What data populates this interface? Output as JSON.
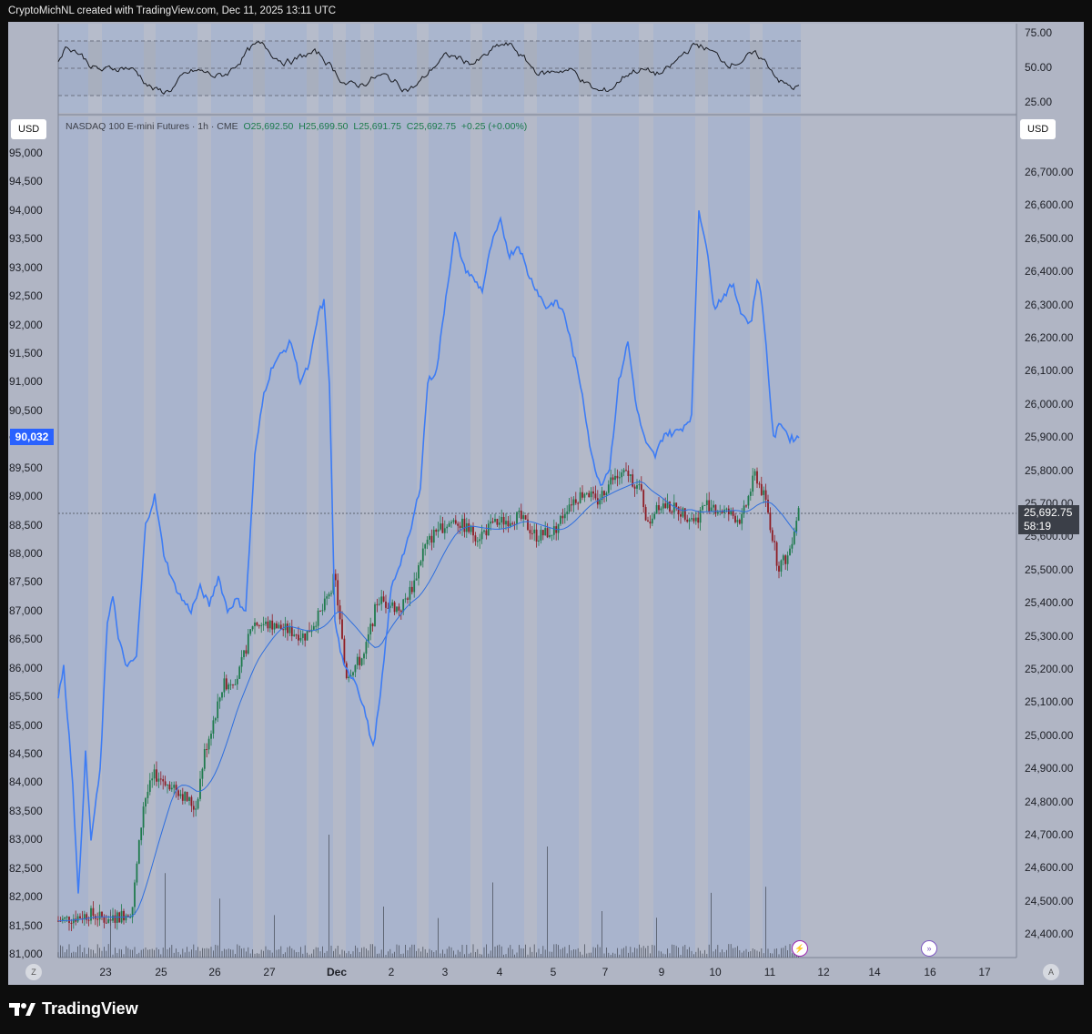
{
  "header": {
    "text": "CryptoMichNL created with TradingView.com, Dec 11, 2025 13:11 UTC"
  },
  "legend": {
    "symbol": "NASDAQ 100 E-mini Futures · 1h · CME",
    "open": "O25,692.50",
    "high": "H25,699.50",
    "low": "L25,691.75",
    "close": "C25,692.75",
    "change": "+0.25 (+0.00%)"
  },
  "currency_left": "USD",
  "currency_right": "USD",
  "left_price_tag": "90,032",
  "last_price": {
    "price": "25,692.75",
    "countdown": "58:19"
  },
  "rsi_scale": [
    "75.00",
    "50.00",
    "25.00"
  ],
  "left_scale": [
    "95,000",
    "94,500",
    "94,000",
    "93,500",
    "93,000",
    "92,500",
    "92,000",
    "91,500",
    "91,000",
    "90,500",
    "90,000",
    "89,500",
    "89,000",
    "88,500",
    "88,000",
    "87,500",
    "87,000",
    "86,500",
    "86,000",
    "85,500",
    "85,000",
    "84,500",
    "84,000",
    "83,500",
    "83,000",
    "82,500",
    "82,000",
    "81,500",
    "81,000"
  ],
  "right_scale": [
    "26,700.00",
    "26,600.00",
    "26,500.00",
    "26,400.00",
    "26,300.00",
    "26,200.00",
    "26,100.00",
    "26,000.00",
    "25,900.00",
    "25,800.00",
    "25,700.00",
    "25,600.00",
    "25,500.00",
    "25,400.00",
    "25,300.00",
    "25,200.00",
    "25,100.00",
    "25,000.00",
    "24,900.00",
    "24,800.00",
    "24,700.00",
    "24,600.00",
    "24,500.00",
    "24,400.00"
  ],
  "x_labels": [
    {
      "t": "23",
      "b": false
    },
    {
      "t": "25",
      "b": false
    },
    {
      "t": "26",
      "b": false
    },
    {
      "t": "27",
      "b": false
    },
    {
      "t": "Dec",
      "b": true
    },
    {
      "t": "2",
      "b": false
    },
    {
      "t": "3",
      "b": false
    },
    {
      "t": "4",
      "b": false
    },
    {
      "t": "5",
      "b": false
    },
    {
      "t": "7",
      "b": false
    },
    {
      "t": "9",
      "b": false
    },
    {
      "t": "10",
      "b": false
    },
    {
      "t": "11",
      "b": false
    },
    {
      "t": "12",
      "b": false
    },
    {
      "t": "14",
      "b": false
    },
    {
      "t": "16",
      "b": false
    },
    {
      "t": "17",
      "b": false
    }
  ],
  "buttons": {
    "zoom_left": "Z",
    "auto_right": "A"
  },
  "brand": "TradingView",
  "colors": {
    "btc_line": "#3d7cf5",
    "up_candle": "#1f7a4d",
    "down_candle": "#8e1c24",
    "ma_line": "#2f6fde",
    "accent": "#2962ff"
  },
  "chart_data": {
    "type": "line",
    "title": "NASDAQ 100 E-mini Futures · 1h · CME",
    "series": [
      {
        "name": "NASDAQ 100 E-mini Futures",
        "x": [
          "23",
          "25",
          "26",
          "27",
          "Dec",
          "2",
          "3",
          "4",
          "5",
          "7",
          "9",
          "10",
          "11"
        ],
        "values": [
          24480,
          24850,
          25130,
          25330,
          25480,
          25410,
          25630,
          25650,
          25640,
          25780,
          25650,
          25680,
          25692.75
        ]
      },
      {
        "name": "",
        "axis": "left",
        "x": [
          "23",
          "25",
          "26",
          "27",
          "Dec",
          "2",
          "3",
          "4",
          "5",
          "7",
          "9",
          "10",
          "11"
        ],
        "values": [
          82300,
          87500,
          87200,
          91500,
          90800,
          85400,
          93500,
          93500,
          92000,
          89500,
          93800,
          92400,
          90032
        ]
      }
    ],
    "ylim_right": [
      24400,
      26750
    ],
    "ylim_left": [
      81000,
      95000
    ],
    "rsi_range": [
      25,
      75
    ]
  }
}
